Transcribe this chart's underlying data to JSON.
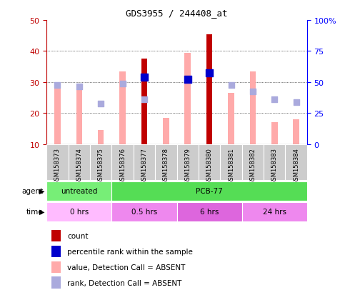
{
  "title": "GDS3955 / 244408_at",
  "samples": [
    "GSM158373",
    "GSM158374",
    "GSM158375",
    "GSM158376",
    "GSM158377",
    "GSM158378",
    "GSM158379",
    "GSM158380",
    "GSM158381",
    "GSM158382",
    "GSM158383",
    "GSM158384"
  ],
  "count_values": [
    null,
    null,
    null,
    null,
    37.5,
    null,
    null,
    45.5,
    null,
    null,
    null,
    null
  ],
  "percentile_rank": [
    null,
    null,
    null,
    null,
    31.5,
    null,
    31.0,
    33.0,
    null,
    null,
    null,
    null
  ],
  "value_absent": [
    29.0,
    29.0,
    14.5,
    33.5,
    null,
    18.5,
    39.5,
    null,
    26.5,
    33.5,
    17.0,
    18.0
  ],
  "rank_absent": [
    29.0,
    28.5,
    23.0,
    29.5,
    24.5,
    null,
    31.0,
    null,
    29.0,
    27.0,
    24.5,
    23.5
  ],
  "ylim_left": [
    10,
    50
  ],
  "ylim_right": [
    0,
    100
  ],
  "yticks_left": [
    10,
    20,
    30,
    40,
    50
  ],
  "yticks_right": [
    0,
    25,
    50,
    75,
    100
  ],
  "ytick_labels_right": [
    "0",
    "25",
    "50",
    "75",
    "100%"
  ],
  "color_count": "#c00000",
  "color_percentile": "#0000cc",
  "color_value_absent": "#ffaaaa",
  "color_rank_absent": "#aaaadd",
  "color_untreated": "#77ee77",
  "color_pcb77": "#55dd55",
  "color_0hrs": "#ffbbff",
  "color_05hrs": "#ee88ee",
  "color_6hrs": "#dd66dd",
  "color_24hrs": "#ee88ee",
  "bar_width": 0.28,
  "dot_size": 45,
  "rank_dot_size": 30
}
